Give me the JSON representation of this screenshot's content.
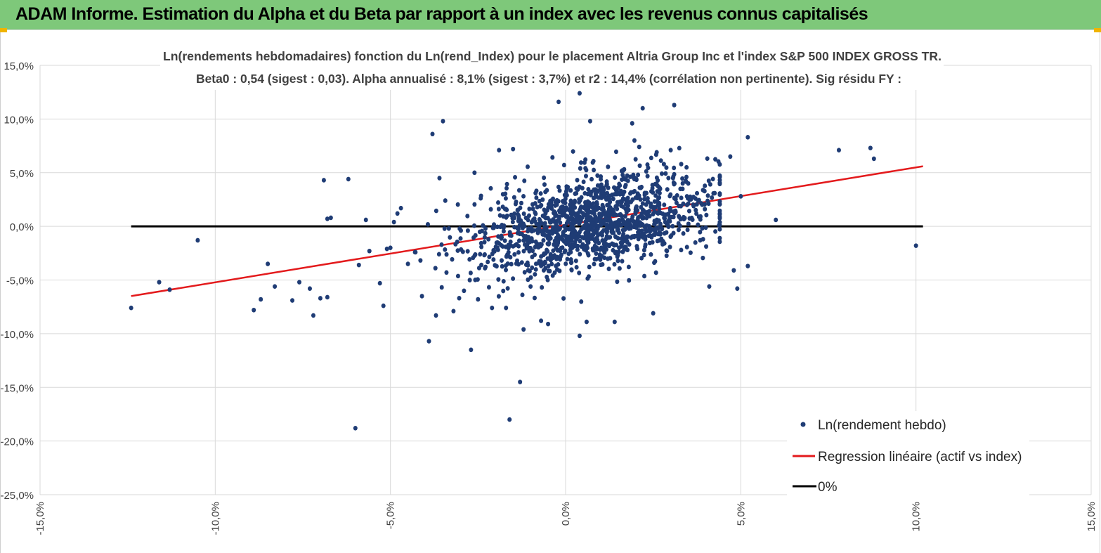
{
  "banner": {
    "title": "ADAM Informe. Estimation du Alpha et du Beta par rapport à un index avec les revenus connus capitalisés"
  },
  "colors": {
    "banner_bg": "#7ec87a",
    "points": "#1f3c75",
    "regression": "#e31a1c",
    "zero_line": "#000000",
    "grid": "#d9d9d9"
  },
  "chart_data": {
    "type": "scatter",
    "title_line1": "Ln(rendements hebdomadaires) fonction du Ln(rend_Index) pour le placement Altria Group Inc et l'index S&P 500 INDEX GROSS TR.",
    "title_line2": "Beta0 : 0,54  (sigest : 0,03). Alpha annualisé : 8,1% (sigest : 3,7%) et r2 : 14,4% (corrélation non pertinente). Sig résidu FY :",
    "xlim": [
      -15,
      15
    ],
    "ylim": [
      -25,
      15
    ],
    "x_ticks": [
      -15,
      -10,
      -5,
      0,
      5,
      10,
      15
    ],
    "y_ticks": [
      15,
      10,
      5,
      0,
      -5,
      -10,
      -15,
      -20,
      -25
    ],
    "x_tick_labels": [
      "-15,0%",
      "-10,0%",
      "-5,0%",
      "0,0%",
      "5,0%",
      "10,0%",
      "15,0%"
    ],
    "y_tick_labels": [
      "15,0%",
      "10,0%",
      "5,0%",
      "0,0%",
      "-5,0%",
      "-10,0%",
      "-15,0%",
      "-20,0%",
      "-25,0%"
    ],
    "grid": true,
    "legend_position": "bottom-right",
    "series": [
      {
        "name": "Ln(rendement hebdo)",
        "type": "scatter",
        "points": [
          [
            -12.4,
            -7.6
          ],
          [
            -11.6,
            -5.2
          ],
          [
            -11.3,
            -5.9
          ],
          [
            -10.5,
            -1.3
          ],
          [
            -8.9,
            -7.8
          ],
          [
            -8.7,
            -6.8
          ],
          [
            -8.5,
            -3.5
          ],
          [
            -8.3,
            -5.6
          ],
          [
            -7.8,
            -6.9
          ],
          [
            -7.6,
            -5.2
          ],
          [
            -7.3,
            -5.8
          ],
          [
            -7.2,
            -8.3
          ],
          [
            -7.0,
            -6.7
          ],
          [
            -6.9,
            4.3
          ],
          [
            -6.8,
            -6.6
          ],
          [
            -6.8,
            0.7
          ],
          [
            -6.7,
            0.8
          ],
          [
            -6.2,
            4.4
          ],
          [
            -6.0,
            -18.8
          ],
          [
            -5.9,
            -3.6
          ],
          [
            -5.7,
            0.6
          ],
          [
            -5.6,
            -2.3
          ],
          [
            -5.3,
            -5.3
          ],
          [
            -5.2,
            -7.4
          ],
          [
            -5.1,
            -2.1
          ],
          [
            -5.0,
            -2.0
          ],
          [
            -4.9,
            0.4
          ],
          [
            -4.8,
            1.2
          ],
          [
            -4.7,
            1.7
          ],
          [
            -4.5,
            -3.5
          ],
          [
            -4.3,
            -2.4
          ],
          [
            -4.1,
            -6.5
          ],
          [
            -3.9,
            -10.7
          ],
          [
            -3.8,
            8.6
          ],
          [
            -3.7,
            -8.3
          ],
          [
            -3.6,
            4.5
          ],
          [
            -3.5,
            9.8
          ],
          [
            -3.4,
            -4.3
          ],
          [
            -3.2,
            -7.9
          ],
          [
            -2.9,
            -6.0
          ],
          [
            -2.7,
            -11.5
          ],
          [
            -2.6,
            5.0
          ],
          [
            -2.5,
            -6.8
          ],
          [
            -2.3,
            -3.9
          ],
          [
            -2.1,
            -7.6
          ],
          [
            -1.9,
            7.1
          ],
          [
            -1.7,
            -7.6
          ],
          [
            -1.6,
            -18.0
          ],
          [
            -1.5,
            7.2
          ],
          [
            -1.3,
            -14.5
          ],
          [
            -1.2,
            -9.6
          ],
          [
            -1.0,
            -5.6
          ],
          [
            -0.7,
            -8.8
          ],
          [
            -0.5,
            -9.1
          ],
          [
            -0.2,
            11.6
          ],
          [
            0.4,
            12.4
          ],
          [
            0.4,
            -10.2
          ],
          [
            0.6,
            -8.9
          ],
          [
            0.7,
            9.8
          ],
          [
            1.4,
            -8.9
          ],
          [
            1.9,
            9.6
          ],
          [
            2.1,
            7.4
          ],
          [
            2.2,
            11.0
          ],
          [
            2.5,
            -8.1
          ],
          [
            2.6,
            6.9
          ],
          [
            3.0,
            7.1
          ],
          [
            3.1,
            11.3
          ],
          [
            3.3,
            5.8
          ],
          [
            3.5,
            4.0
          ],
          [
            4.1,
            -5.6
          ],
          [
            4.7,
            6.5
          ],
          [
            4.8,
            -4.1
          ],
          [
            4.9,
            -5.8
          ],
          [
            5.0,
            2.8
          ],
          [
            5.2,
            -3.7
          ],
          [
            5.2,
            8.3
          ],
          [
            6.0,
            0.6
          ],
          [
            7.8,
            7.1
          ],
          [
            8.7,
            7.3
          ],
          [
            8.8,
            6.3
          ],
          [
            10.0,
            -1.8
          ]
        ],
        "cloud": {
          "count": 1380,
          "center": [
            0.8,
            0.4
          ],
          "x_spread": 1.75,
          "y_spread": 2.2,
          "beta": 0.54,
          "x_range": [
            -4.6,
            4.4
          ],
          "y_range": [
            -8.0,
            8.0
          ]
        }
      },
      {
        "name": "Regression linéaire (actif vs index)",
        "type": "line",
        "x": [
          -12.4,
          10.2
        ],
        "y": [
          -6.5,
          5.6
        ]
      },
      {
        "name": "0%",
        "type": "line",
        "x": [
          -12.4,
          10.2
        ],
        "y": [
          0,
          0
        ]
      }
    ]
  }
}
